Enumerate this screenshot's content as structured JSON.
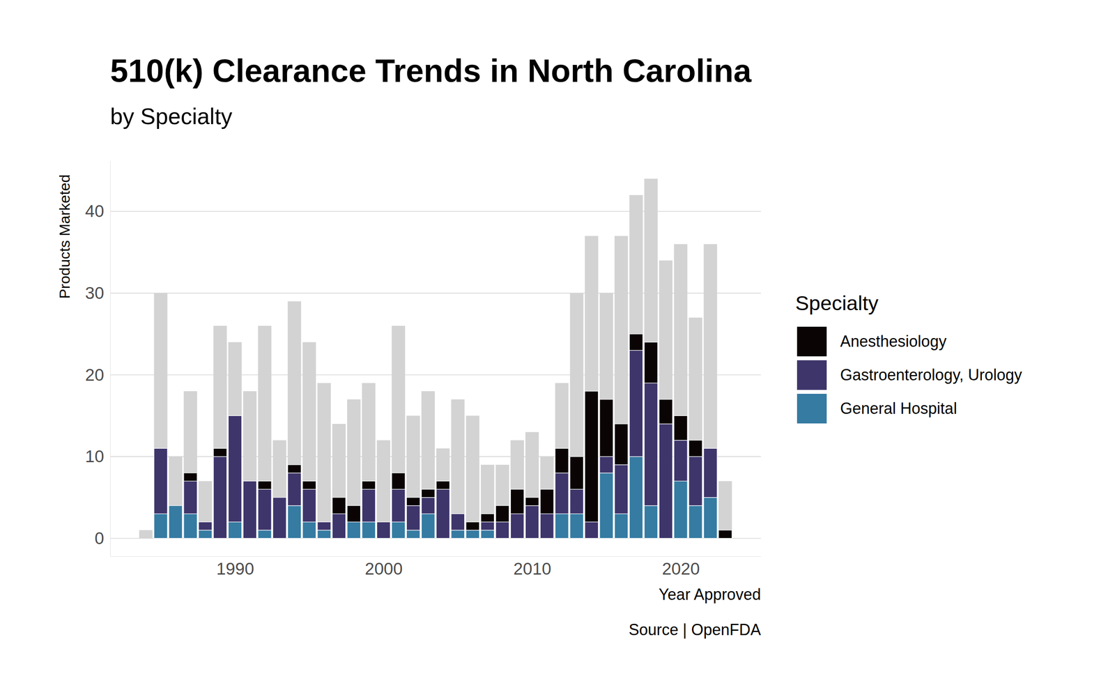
{
  "chart_data": {
    "type": "bar",
    "title": "510(k) Clearance Trends in North Carolina",
    "subtitle": "by Specialty",
    "x_label": "Year Approved",
    "y_label": "Products Marketed",
    "caption": "Source | OpenFDA",
    "legend_title": "Specialty",
    "legend": "right",
    "stacked": true,
    "grid": "y",
    "x": [
      1984,
      1985,
      1986,
      1987,
      1988,
      1989,
      1990,
      1991,
      1992,
      1993,
      1994,
      1995,
      1996,
      1997,
      1998,
      1999,
      2000,
      2001,
      2002,
      2003,
      2004,
      2005,
      2006,
      2007,
      2008,
      2009,
      2010,
      2011,
      2012,
      2013,
      2014,
      2015,
      2016,
      2017,
      2018,
      2019,
      2020,
      2021,
      2022,
      2023
    ],
    "xlim": [
      1981.6,
      2025.4
    ],
    "xticks": [
      1990,
      2000,
      2010,
      2020
    ],
    "ylim": [
      -2.2,
      46.2
    ],
    "yticks": [
      0,
      10,
      20,
      30,
      40
    ],
    "totals": {
      "color": "#d3d3d3",
      "values": [
        1,
        30,
        10,
        18,
        7,
        26,
        24,
        18,
        26,
        12,
        29,
        24,
        19,
        14,
        17,
        19,
        12,
        26,
        15,
        18,
        11,
        17,
        15,
        9,
        9,
        12,
        13,
        10,
        19,
        30,
        37,
        30,
        37,
        42,
        44,
        34,
        36,
        27,
        36,
        7
      ]
    },
    "series": [
      {
        "name": "Anesthesiology",
        "color": "#0b0405",
        "values": [
          0,
          0,
          0,
          1,
          0,
          1,
          0,
          0,
          1,
          0,
          1,
          1,
          0,
          2,
          2,
          1,
          0,
          2,
          1,
          1,
          1,
          0,
          1,
          1,
          2,
          3,
          1,
          3,
          3,
          4,
          16,
          7,
          5,
          2,
          5,
          3,
          3,
          2,
          0,
          1
        ]
      },
      {
        "name": "Gastroenterology, Urology",
        "color": "#3e356b",
        "values": [
          0,
          8,
          0,
          4,
          1,
          10,
          13,
          7,
          5,
          5,
          4,
          4,
          1,
          3,
          0,
          4,
          2,
          4,
          3,
          2,
          6,
          2,
          0,
          1,
          2,
          3,
          4,
          3,
          5,
          3,
          2,
          2,
          6,
          13,
          15,
          14,
          5,
          6,
          6,
          0
        ]
      },
      {
        "name": "General Hospital",
        "color": "#357ba2",
        "values": [
          0,
          3,
          4,
          3,
          1,
          0,
          2,
          0,
          1,
          0,
          4,
          2,
          1,
          0,
          2,
          2,
          0,
          2,
          1,
          3,
          0,
          1,
          1,
          1,
          0,
          0,
          0,
          0,
          3,
          3,
          0,
          8,
          3,
          10,
          4,
          0,
          7,
          4,
          5,
          0
        ]
      }
    ]
  }
}
